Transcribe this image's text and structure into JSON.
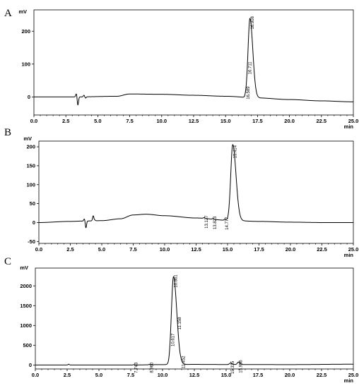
{
  "chart_data": [
    {
      "type": "line",
      "panel_label": "A",
      "ylabel": "mV",
      "xlabel": "min",
      "xlim": [
        0.0,
        25.0
      ],
      "ylim": [
        -55,
        265
      ],
      "x_ticks": [
        "0.0",
        "2.5",
        "5.0",
        "7.5",
        "10.0",
        "12.5",
        "15.0",
        "17.5",
        "20.0",
        "22.5",
        "25.0"
      ],
      "y_ticks": [
        {
          "value": 200,
          "label": "200"
        },
        {
          "value": 100,
          "label": "100"
        },
        {
          "value": 0,
          "label": "0"
        }
      ],
      "baseline": [
        [
          0,
          0
        ],
        [
          3.2,
          0
        ],
        [
          6.5,
          2
        ],
        [
          7.5,
          9
        ],
        [
          10,
          8
        ],
        [
          12.5,
          5
        ],
        [
          15,
          2
        ],
        [
          17.5,
          -3
        ],
        [
          20,
          -8
        ],
        [
          22.5,
          -12
        ],
        [
          25,
          -15
        ]
      ],
      "disturbances": [
        {
          "x": 3.4,
          "lo": -25,
          "hi": 10
        },
        {
          "x": 4.0,
          "lo": -4,
          "hi": 5
        }
      ],
      "peaks": [
        {
          "rt": 16.908,
          "height": 240,
          "width": 0.14,
          "label": "16.908"
        },
        {
          "rt": 16.589,
          "height": 8,
          "width": 0.06,
          "label": "16.589"
        },
        {
          "rt": 16.711,
          "height": 10,
          "width": 0.06,
          "label": "16.711"
        }
      ]
    },
    {
      "type": "line",
      "panel_label": "B",
      "ylabel": "mV",
      "xlabel": "min",
      "xlim": [
        0.0,
        25.0
      ],
      "ylim": [
        -55,
        215
      ],
      "x_ticks": [
        "0.0",
        "2.5",
        "5.0",
        "7.5",
        "10.0",
        "12.5",
        "15.0",
        "17.5",
        "20.0",
        "22.5",
        "25.0"
      ],
      "y_ticks": [
        {
          "value": 200,
          "label": "200"
        },
        {
          "value": 150,
          "label": "150"
        },
        {
          "value": 100,
          "label": "100"
        },
        {
          "value": 50,
          "label": "50"
        },
        {
          "value": 0,
          "label": "0"
        },
        {
          "value": -50,
          "label": "-50"
        }
      ],
      "baseline": [
        [
          0,
          0
        ],
        [
          2.5,
          3
        ],
        [
          3.5,
          4
        ],
        [
          5,
          5
        ],
        [
          6.5,
          10
        ],
        [
          7.5,
          20
        ],
        [
          8.5,
          22
        ],
        [
          10,
          18
        ],
        [
          12.5,
          12
        ],
        [
          15,
          6
        ],
        [
          17.5,
          3
        ],
        [
          20,
          1
        ],
        [
          22.5,
          0
        ],
        [
          25,
          0
        ]
      ],
      "disturbances": [
        {
          "x": 3.7,
          "lo": -18,
          "hi": 6
        },
        {
          "x": 4.4,
          "lo": 2,
          "hi": 13
        }
      ],
      "peaks": [
        {
          "rt": 15.414,
          "height": 200,
          "width": 0.16,
          "label": "15.414"
        },
        {
          "rt": 13.127,
          "height": 2,
          "width": 0.05,
          "label": "13.127"
        },
        {
          "rt": 13.823,
          "height": 2,
          "width": 0.05,
          "label": "13.823"
        },
        {
          "rt": 14.777,
          "height": 3,
          "width": 0.05,
          "label": "14.777"
        }
      ]
    },
    {
      "type": "line",
      "panel_label": "C",
      "ylabel": "mV",
      "xlabel": "min",
      "xlim": [
        0.0,
        25.0
      ],
      "ylim": [
        -100,
        2450
      ],
      "x_ticks": [
        "0.0",
        "2.5",
        "5.0",
        "7.5",
        "10.0",
        "12.5",
        "15.0",
        "17.5",
        "20.0",
        "22.5",
        "25.0"
      ],
      "y_ticks": [
        {
          "value": 2000,
          "label": "2000"
        },
        {
          "value": 1500,
          "label": "1500"
        },
        {
          "value": 1000,
          "label": "1000"
        },
        {
          "value": 500,
          "label": "500"
        },
        {
          "value": 0,
          "label": "0"
        }
      ],
      "baseline": [
        [
          0,
          0
        ],
        [
          7.5,
          0
        ],
        [
          10,
          10
        ],
        [
          12.5,
          15
        ],
        [
          15,
          12
        ],
        [
          20,
          10
        ],
        [
          25,
          20
        ]
      ],
      "disturbances": [
        {
          "x": 2.7,
          "lo": 0,
          "hi": 20
        }
      ],
      "peaks": [
        {
          "rt": 10.861,
          "height": 2220,
          "width": 0.16,
          "label": "10.861"
        },
        {
          "rt": 7.743,
          "height": 10,
          "width": 0.05,
          "label": "7.743"
        },
        {
          "rt": 8.96,
          "height": 8,
          "width": 0.05,
          "label": "8.960"
        },
        {
          "rt": 10.617,
          "height": 40,
          "width": 0.05,
          "label": "10.617"
        },
        {
          "rt": 11.158,
          "height": 12,
          "width": 0.05,
          "label": "11.158"
        },
        {
          "rt": 11.452,
          "height": 10,
          "width": 0.05,
          "label": "11.452"
        },
        {
          "rt": 15.335,
          "height": 35,
          "width": 0.08,
          "label": "15.335"
        },
        {
          "rt": 15.956,
          "height": 60,
          "width": 0.08,
          "label": "15.956"
        }
      ]
    }
  ]
}
